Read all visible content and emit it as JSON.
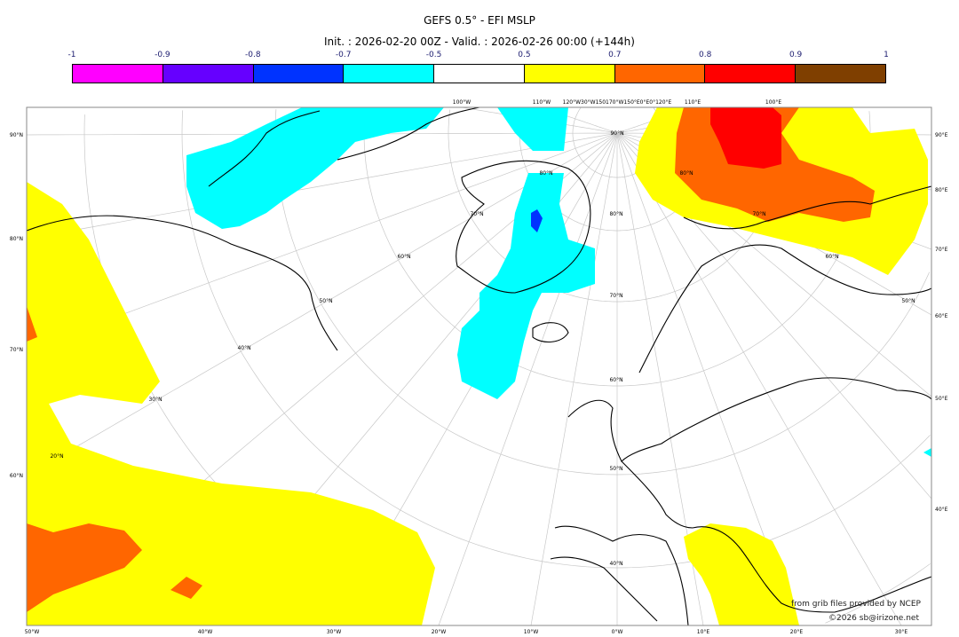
{
  "title": "GEFS 0.5° - EFI MSLP",
  "subtitle": "Init. : 2026-02-20 00Z - Valid. : 2026-02-26 00:00 (+144h)",
  "colorbar": {
    "ticks": [
      "-1",
      "-0.9",
      "-0.8",
      "-0.7",
      "-0.5",
      "0.5",
      "0.7",
      "0.8",
      "0.9",
      "1"
    ],
    "colors": [
      "#ff00ff",
      "#6600ff",
      "#0033ff",
      "#00ffff",
      "#ffffff",
      "#ffff00",
      "#ff6600",
      "#ff0000",
      "#7f3f00"
    ]
  },
  "axes": {
    "bottom": [
      "50°W",
      "40°W",
      "30°W",
      "20°W",
      "10°W",
      "0°W",
      "10°E",
      "20°E",
      "30°E"
    ],
    "left": [
      "90°N",
      "80°N",
      "70°N",
      "60°N"
    ],
    "right": [
      "90°E",
      "80°E",
      "70°E",
      "60°E",
      "50°E",
      "40°E"
    ],
    "top": [
      "100°W",
      "110°W",
      "120°W30°W150170°W150°E0°E0°120°E",
      "110°E",
      "100°E"
    ]
  },
  "grid_labels": [
    "90°N",
    "80°N",
    "70°N",
    "60°N",
    "50°N",
    "40°N",
    "30°N",
    "20°N",
    "80°N",
    "70°N",
    "60°N",
    "50°N",
    "80°N",
    "70°N",
    "60°N",
    "50°N",
    "40°N"
  ],
  "credits": {
    "source": "from grib files provided by NCEP",
    "copyright": "©2026 sb@irizone.net"
  }
}
